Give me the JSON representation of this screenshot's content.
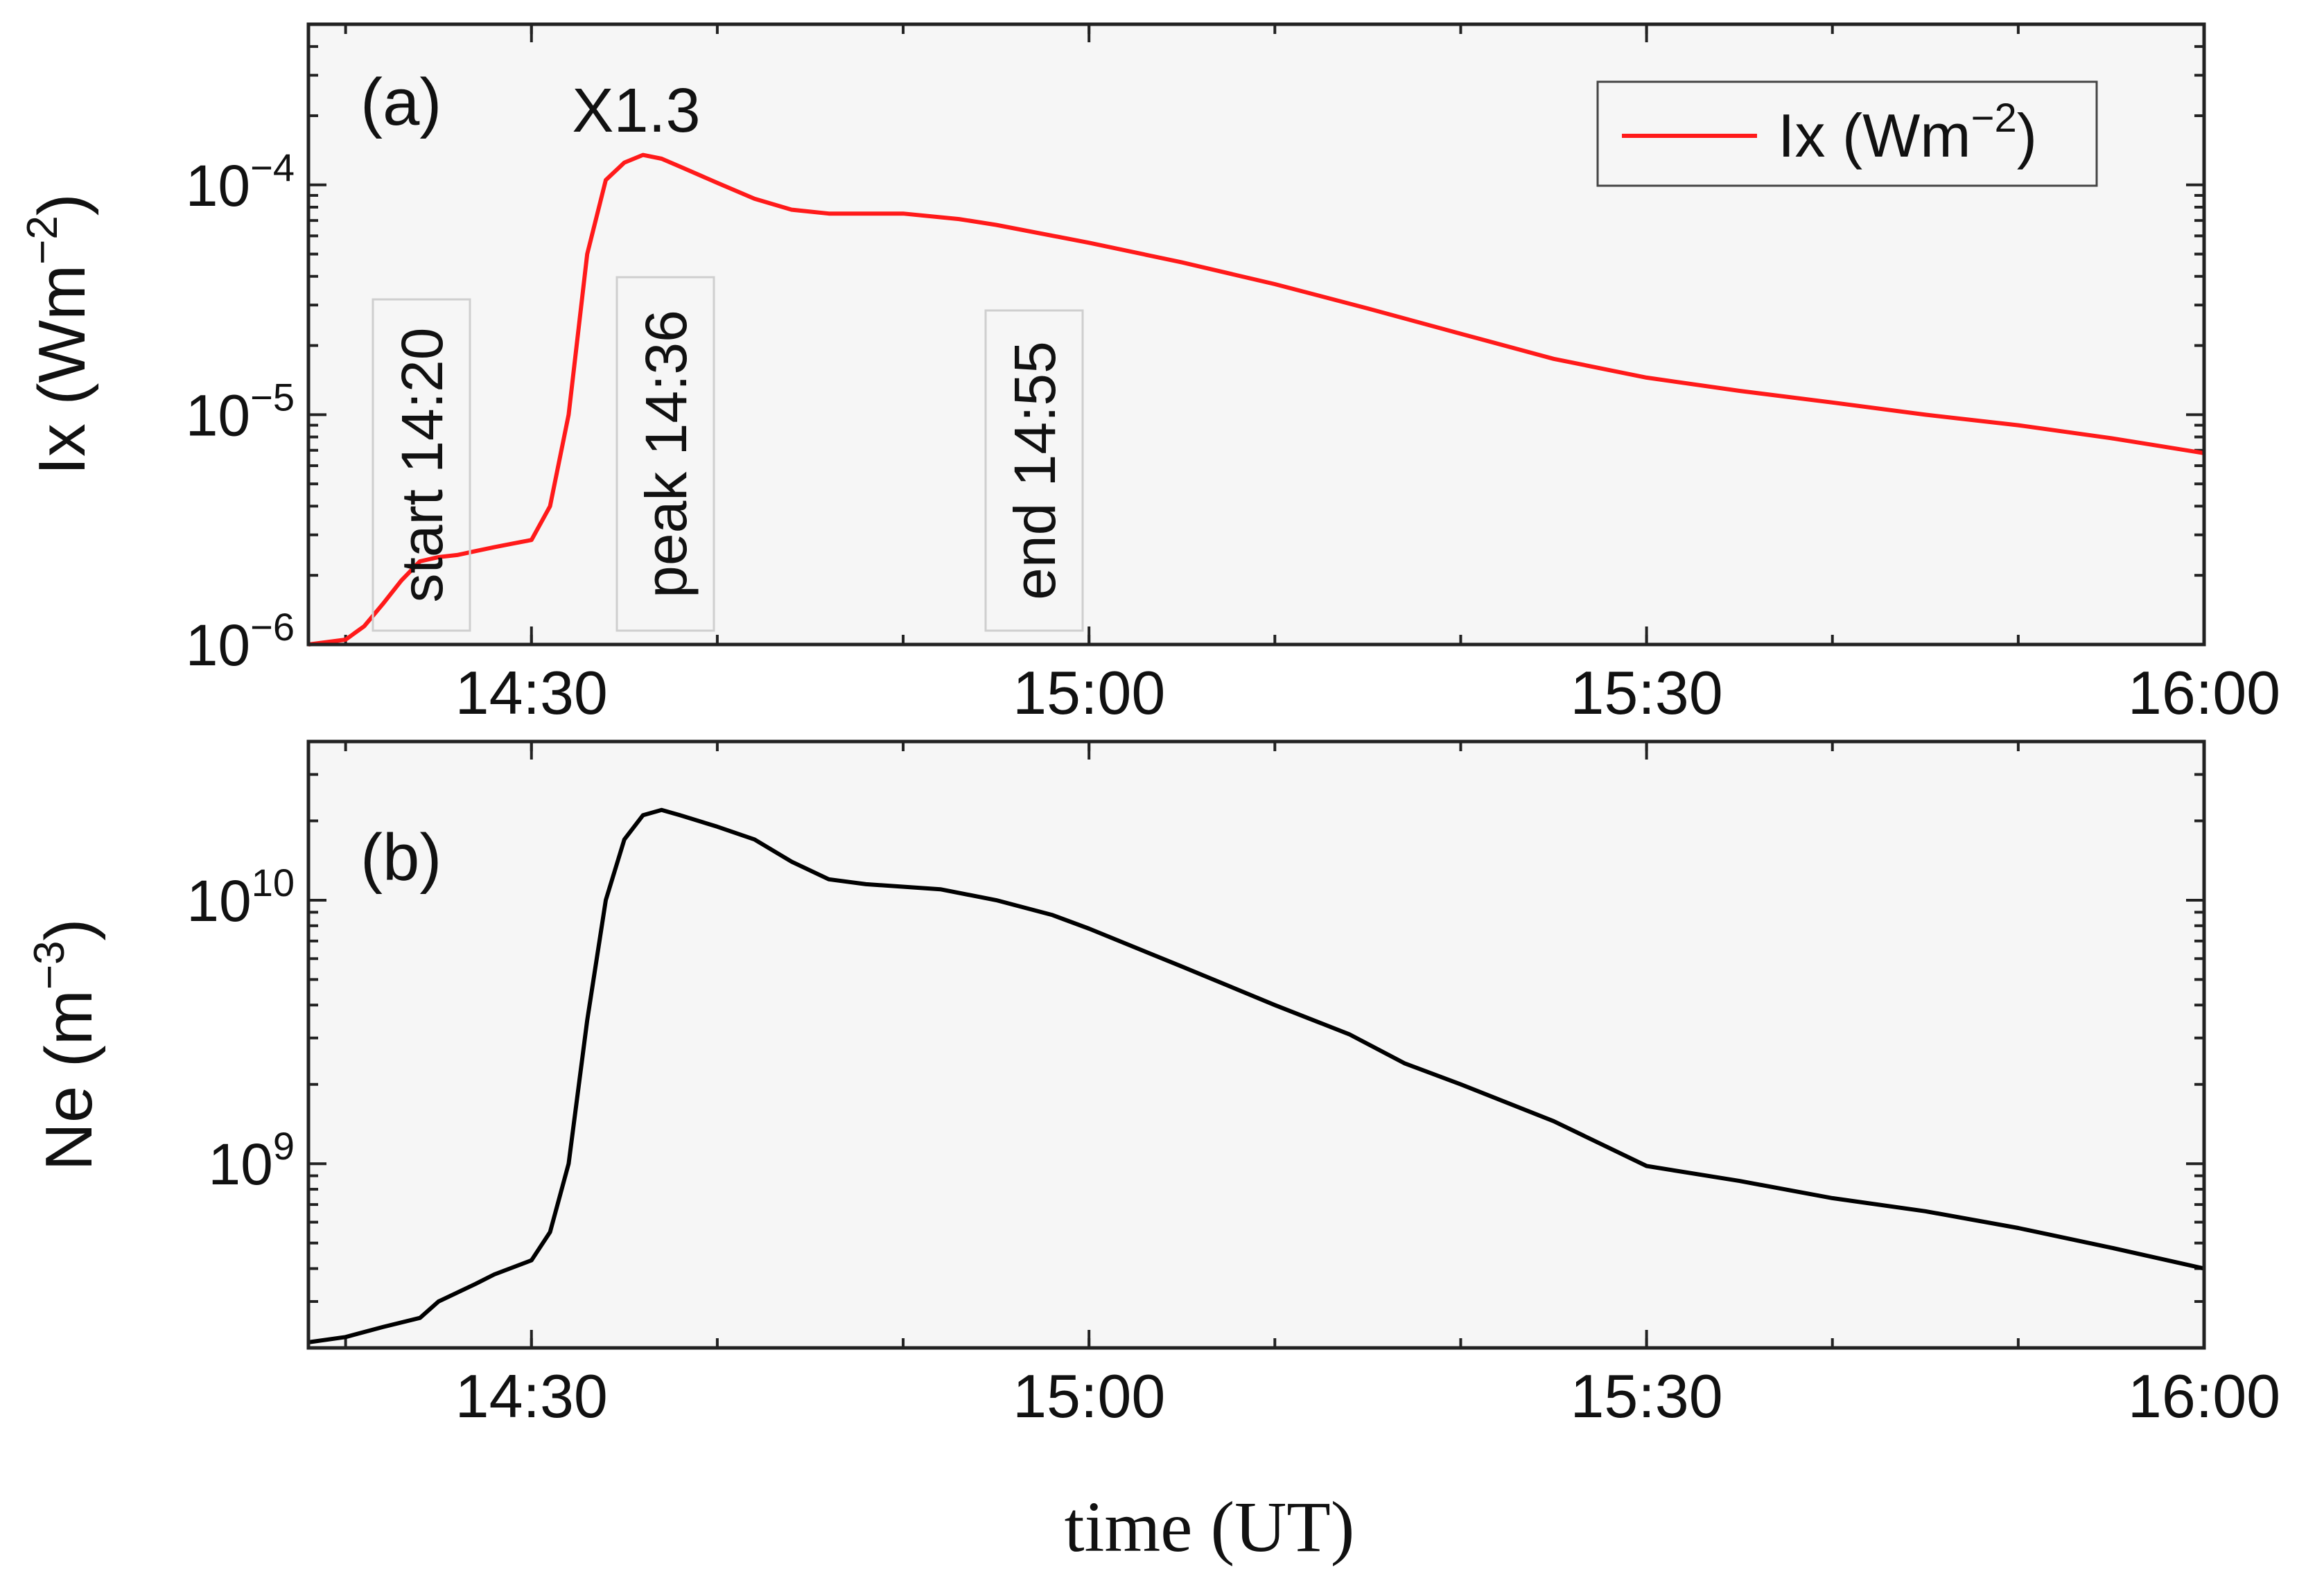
{
  "chart_data": [
    {
      "panel_label": "(a)",
      "type": "line",
      "xlabel": "",
      "ylabel_base": "Ix (Wm",
      "ylabel_exp": "−2",
      "ylabel_close": ")",
      "yscale": "log",
      "xlim": [
        "14:18",
        "16:00"
      ],
      "ylim": [
        1e-06,
        0.0005
      ],
      "x_ticks": [
        "14:30",
        "15:00",
        "15:30",
        "16:00"
      ],
      "y_ticks": [
        {
          "value": 1e-06,
          "base": "10",
          "exp": "−6"
        },
        {
          "value": 1e-05,
          "base": "10",
          "exp": "−5"
        },
        {
          "value": 0.0001,
          "base": "10",
          "exp": "−4"
        }
      ],
      "legend": {
        "placement": "top-right",
        "label_base": "Ix (Wm",
        "label_exp": "−2",
        "label_close": ")",
        "color": "#ff1a1a"
      },
      "annotations": {
        "flare_class": "X1.3",
        "start": "start 14:20",
        "peak": "peak 14:36",
        "end": "end 14:55"
      },
      "series": [
        {
          "name": "Ix (Wm-2)",
          "color": "#ff1a1a",
          "points": [
            [
              "14:18",
              1e-06
            ],
            [
              "14:20",
              1.05e-06
            ],
            [
              "14:21",
              1.2e-06
            ],
            [
              "14:22",
              1.5e-06
            ],
            [
              "14:23",
              1.9e-06
            ],
            [
              "14:24",
              2.3e-06
            ],
            [
              "14:25",
              2.4e-06
            ],
            [
              "14:26",
              2.45e-06
            ],
            [
              "14:27",
              2.55e-06
            ],
            [
              "14:28",
              2.65e-06
            ],
            [
              "14:29",
              2.75e-06
            ],
            [
              "14:30",
              2.85e-06
            ],
            [
              "14:31",
              4e-06
            ],
            [
              "14:32",
              1e-05
            ],
            [
              "14:33",
              5e-05
            ],
            [
              "14:34",
              0.000105
            ],
            [
              "14:35",
              0.000125
            ],
            [
              "14:36",
              0.000135
            ],
            [
              "14:37",
              0.00013
            ],
            [
              "14:38",
              0.00012
            ],
            [
              "14:40",
              0.000102
            ],
            [
              "14:42",
              8.7e-05
            ],
            [
              "14:44",
              7.8e-05
            ],
            [
              "14:46",
              7.5e-05
            ],
            [
              "14:50",
              7.5e-05
            ],
            [
              "14:53",
              7.1e-05
            ],
            [
              "14:55",
              6.7e-05
            ],
            [
              "15:00",
              5.6e-05
            ],
            [
              "15:05",
              4.6e-05
            ],
            [
              "15:10",
              3.7e-05
            ],
            [
              "15:15",
              2.9e-05
            ],
            [
              "15:20",
              2.25e-05
            ],
            [
              "15:25",
              1.75e-05
            ],
            [
              "15:30",
              1.45e-05
            ],
            [
              "15:35",
              1.27e-05
            ],
            [
              "15:40",
              1.13e-05
            ],
            [
              "15:45",
              1e-05
            ],
            [
              "15:50",
              9e-06
            ],
            [
              "15:55",
              7.9e-06
            ],
            [
              "16:00",
              6.8e-06
            ]
          ]
        }
      ]
    },
    {
      "panel_label": "(b)",
      "type": "line",
      "xlabel": "time (UT)",
      "ylabel_base": "Ne (m",
      "ylabel_exp": "−3",
      "ylabel_close": ")",
      "yscale": "log",
      "xlim": [
        "14:18",
        "16:00"
      ],
      "ylim": [
        200000000,
        40000000000
      ],
      "x_ticks": [
        "14:30",
        "15:00",
        "15:30",
        "16:00"
      ],
      "y_ticks": [
        {
          "value": 1000000000,
          "base": "10",
          "exp": "9"
        },
        {
          "value": 10000000000,
          "base": "10",
          "exp": "10"
        }
      ],
      "series": [
        {
          "name": "Ne",
          "color": "#000000",
          "points": [
            [
              "14:18",
              210000000.0
            ],
            [
              "14:20",
              220000000.0
            ],
            [
              "14:22",
              240000000.0
            ],
            [
              "14:24",
              260000000.0
            ],
            [
              "14:25",
              300000000.0
            ],
            [
              "14:27",
              350000000.0
            ],
            [
              "14:28",
              380000000.0
            ],
            [
              "14:30",
              430000000.0
            ],
            [
              "14:31",
              550000000.0
            ],
            [
              "14:32",
              1000000000.0
            ],
            [
              "14:33",
              3500000000.0
            ],
            [
              "14:34",
              10000000000.0
            ],
            [
              "14:35",
              17000000000.0
            ],
            [
              "14:36",
              21000000000.0
            ],
            [
              "14:37",
              22000000000.0
            ],
            [
              "14:38",
              21000000000.0
            ],
            [
              "14:40",
              19000000000.0
            ],
            [
              "14:42",
              17000000000.0
            ],
            [
              "14:44",
              14000000000.0
            ],
            [
              "14:46",
              12000000000.0
            ],
            [
              "14:48",
              11500000000.0
            ],
            [
              "14:52",
              11000000000.0
            ],
            [
              "14:55",
              10000000000.0
            ],
            [
              "14:58",
              8800000000.0
            ],
            [
              "15:00",
              7800000000.0
            ],
            [
              "15:05",
              5600000000.0
            ],
            [
              "15:10",
              4000000000.0
            ],
            [
              "15:14",
              3100000000.0
            ],
            [
              "15:17",
              2400000000.0
            ],
            [
              "15:20",
              2000000000.0
            ],
            [
              "15:25",
              1450000000.0
            ],
            [
              "15:30",
              980000000.0
            ],
            [
              "15:35",
              860000000.0
            ],
            [
              "15:40",
              740000000.0
            ],
            [
              "15:45",
              660000000.0
            ],
            [
              "15:50",
              570000000.0
            ],
            [
              "15:55",
              480000000.0
            ],
            [
              "16:00",
              400000000.0
            ]
          ]
        }
      ]
    }
  ]
}
